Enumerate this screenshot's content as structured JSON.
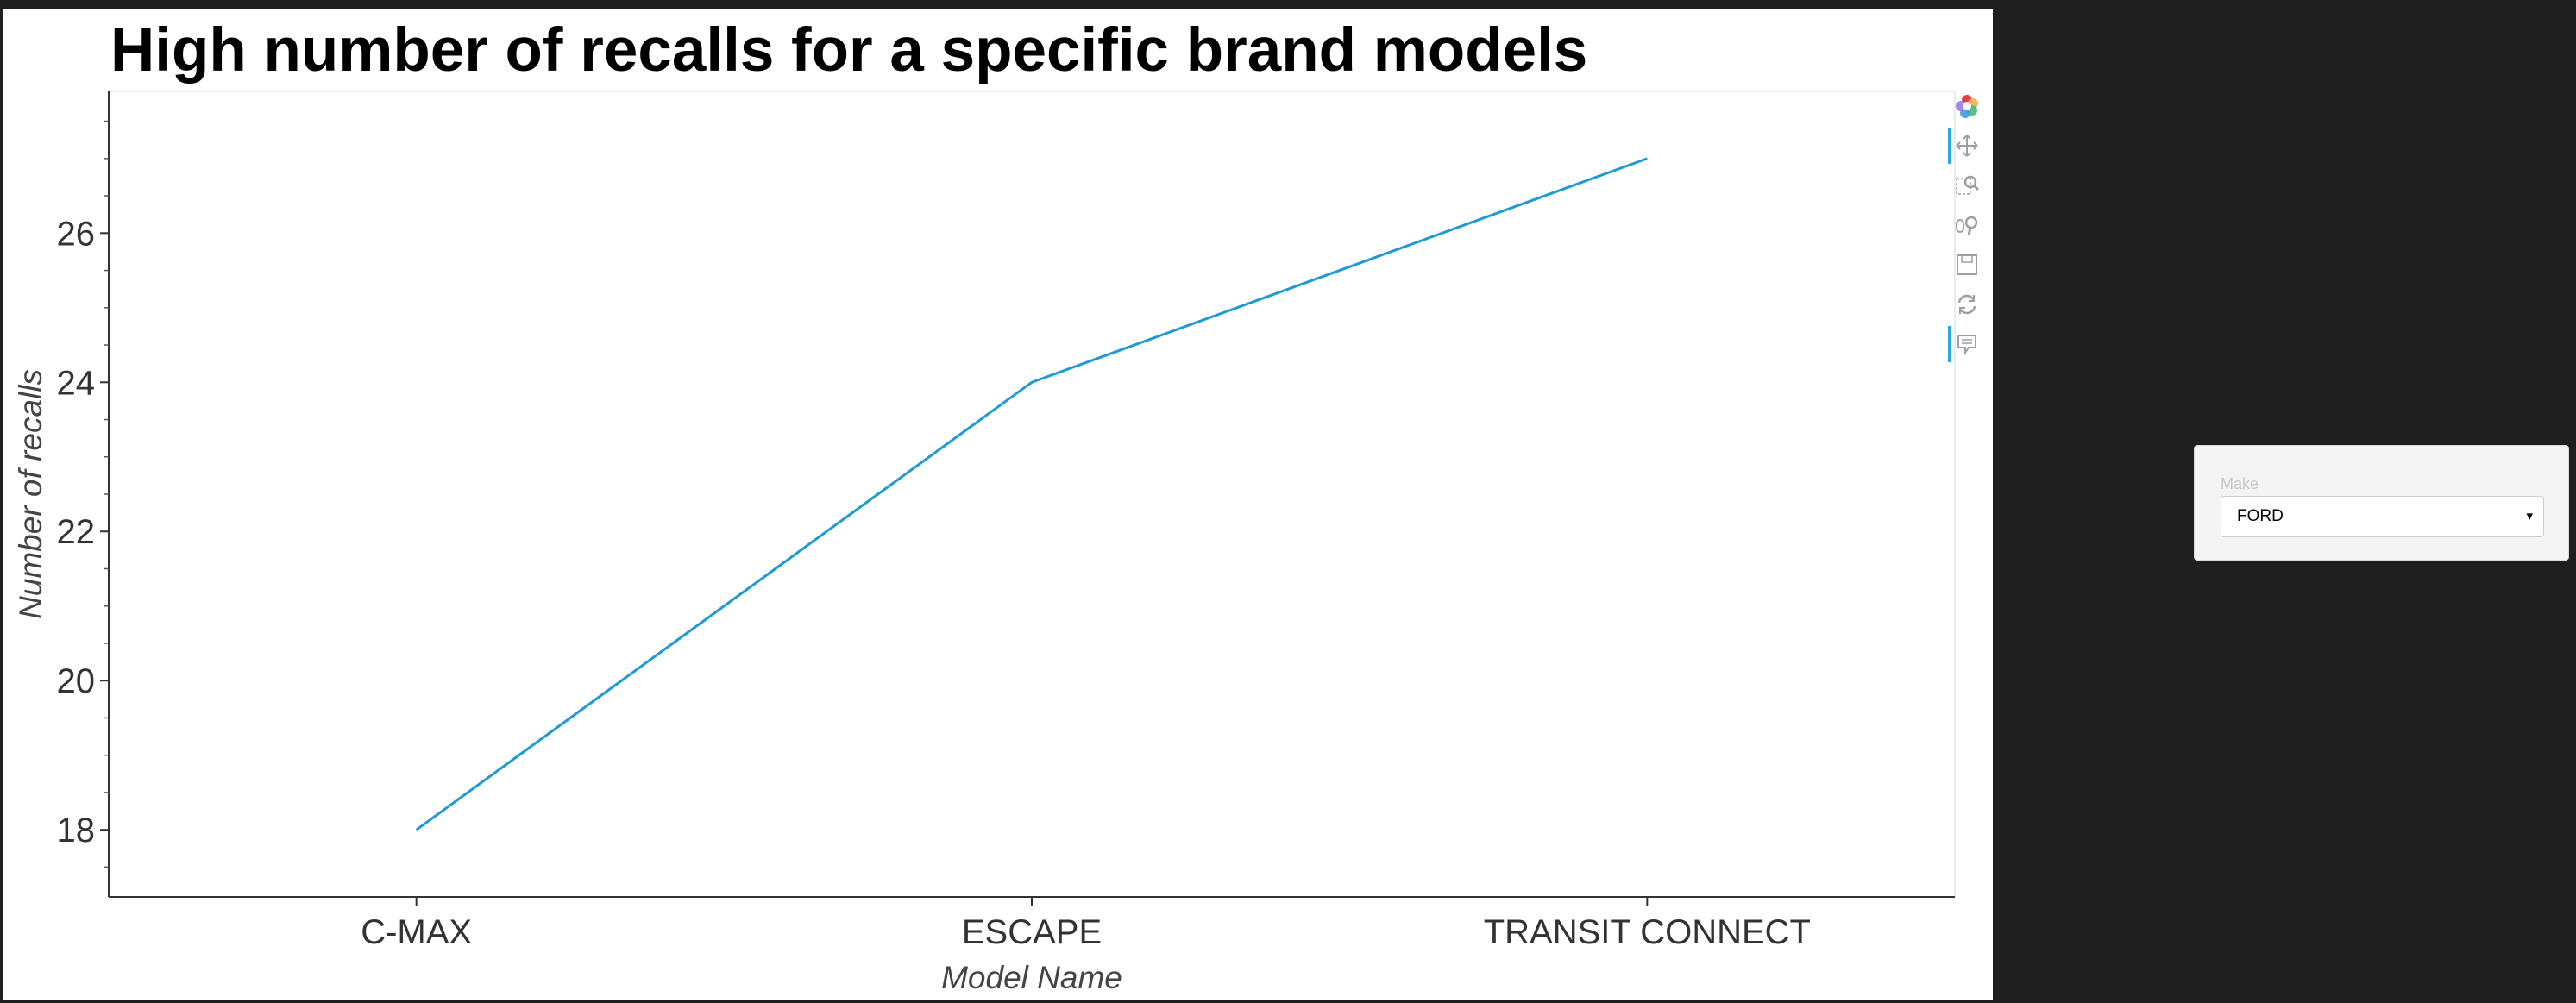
{
  "chart_data": {
    "type": "line",
    "title": "High number of recalls for a specific brand models",
    "xlabel": "Model Name",
    "ylabel": "Number of recalls",
    "categories": [
      "C-MAX",
      "ESCAPE",
      "TRANSIT CONNECT"
    ],
    "series": [
      {
        "values": [
          18,
          24,
          27
        ],
        "color": "#1f9bd1"
      }
    ],
    "ylim": [
      17.1,
      27.9
    ],
    "yticks": [
      18,
      20,
      22,
      24,
      26
    ],
    "grid": false
  },
  "toolbar": {
    "tools": [
      "bokeh-logo-icon",
      "pan-icon",
      "box-zoom-icon",
      "wheel-zoom-icon",
      "save-icon",
      "reset-icon",
      "hover-icon"
    ]
  },
  "widget": {
    "label": "Make",
    "selected": "FORD",
    "arrow": "▾"
  }
}
